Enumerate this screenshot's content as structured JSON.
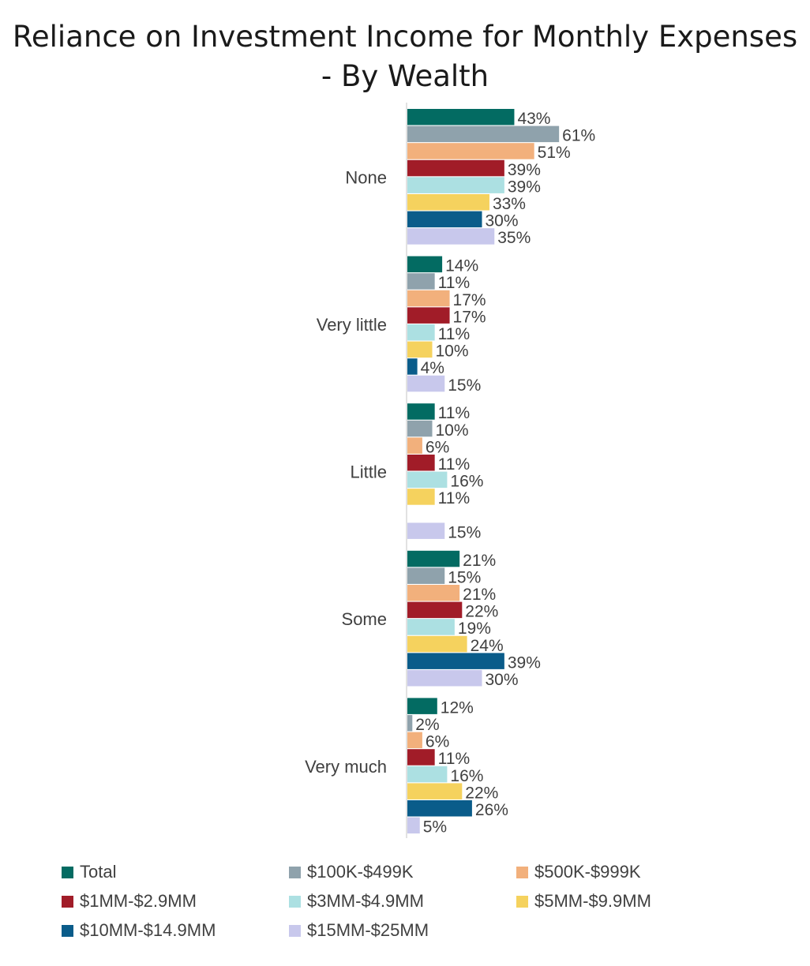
{
  "chart_data": {
    "type": "bar",
    "orientation": "horizontal",
    "title": [
      "Reliance on Investment Income for Monthly Expenses",
      "- By Wealth"
    ],
    "categories": [
      "None",
      "Very little",
      "Little",
      "Some",
      "Very much"
    ],
    "series": [
      {
        "name": "Total",
        "color": "#036b62",
        "values": [
          43,
          14,
          11,
          21,
          12
        ]
      },
      {
        "name": "$100K-$499K",
        "color": "#8fa2ac",
        "values": [
          61,
          11,
          10,
          15,
          2
        ]
      },
      {
        "name": "$500K-$999K",
        "color": "#f2b07c",
        "values": [
          51,
          17,
          6,
          21,
          6
        ]
      },
      {
        "name": "$1MM-$2.9MM",
        "color": "#a11c28",
        "values": [
          39,
          17,
          11,
          22,
          11
        ]
      },
      {
        "name": "$3MM-$4.9MM",
        "color": "#ace0e2",
        "values": [
          39,
          11,
          16,
          19,
          16
        ]
      },
      {
        "name": "$5MM-$9.9MM",
        "color": "#f5d25e",
        "values": [
          33,
          10,
          11,
          24,
          22
        ]
      },
      {
        "name": "$10MM-$14.9MM",
        "color": "#0a5c8a",
        "values": [
          30,
          4,
          null,
          39,
          26
        ]
      },
      {
        "name": "$15MM-$25MM",
        "color": "#c8c8ec",
        "values": [
          35,
          15,
          15,
          30,
          5
        ]
      }
    ],
    "value_format": "percent",
    "legend_position": "bottom",
    "grid": false
  }
}
